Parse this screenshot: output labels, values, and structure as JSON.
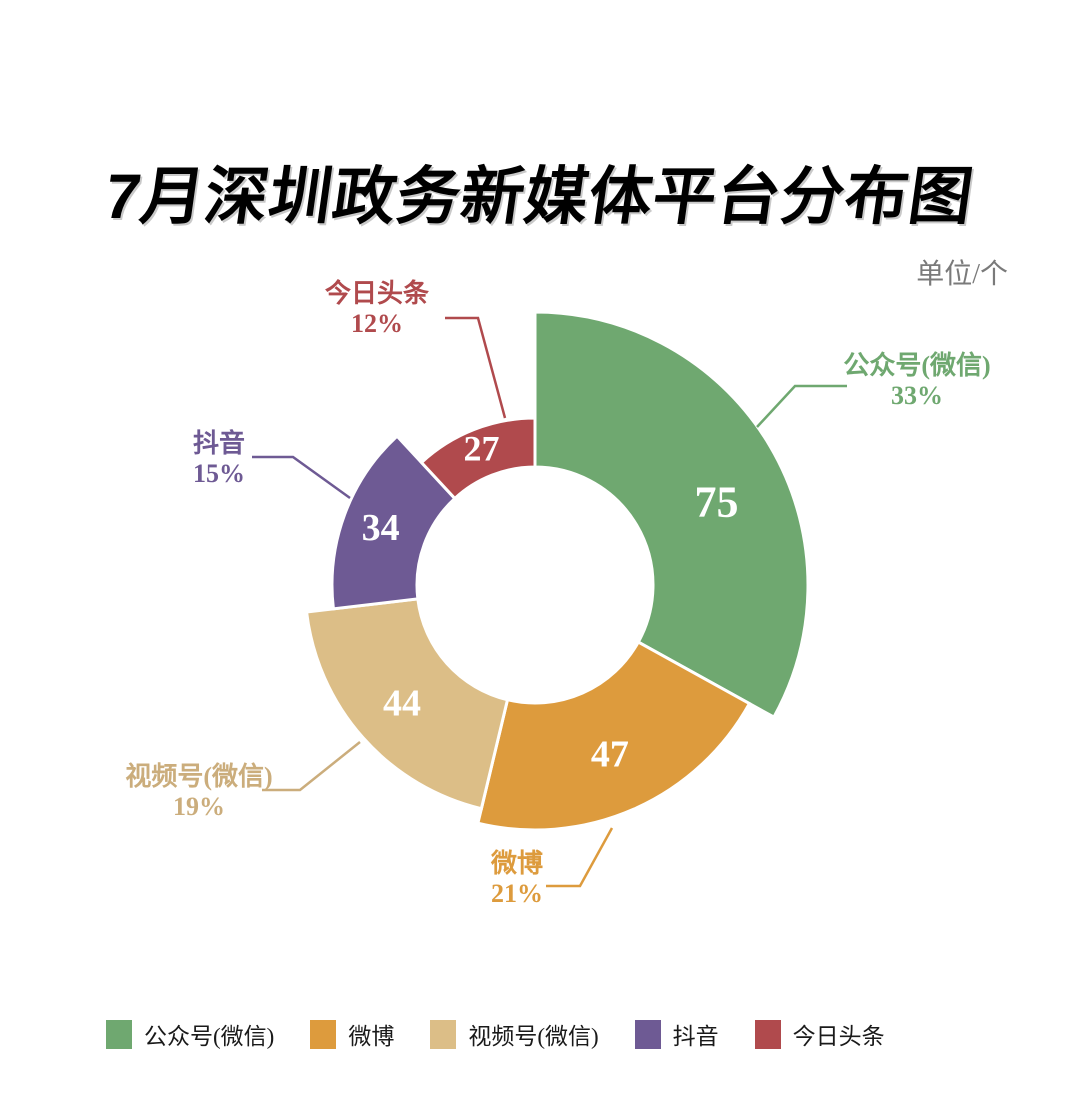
{
  "title": "7月深圳政务新媒体平台分布图",
  "unit_label": "单位/个",
  "chart_data": {
    "type": "pie",
    "subtype": "donut-rose",
    "title": "7月深圳政务新媒体平台分布图",
    "unit": "单位/个",
    "total": 227,
    "start_angle_deg": 0,
    "direction": "clockwise",
    "legend_position": "bottom",
    "series": [
      {
        "name": "公众号(微信)",
        "value": 75,
        "percent": "33%",
        "color": "#6FA870",
        "label_color": "#6FA870"
      },
      {
        "name": "微博",
        "value": 47,
        "percent": "21%",
        "color": "#DD9B3D",
        "label_color": "#DD9B3D"
      },
      {
        "name": "视频号(微信)",
        "value": 44,
        "percent": "19%",
        "color": "#DCBE87",
        "label_color": "#CBAD7C"
      },
      {
        "name": "抖音",
        "value": 34,
        "percent": "15%",
        "color": "#6E5A94",
        "label_color": "#6E5A94"
      },
      {
        "name": "今日头条",
        "value": 27,
        "percent": "12%",
        "color": "#B04A4D",
        "label_color": "#B04A4D"
      }
    ],
    "legend": [
      "公众号(微信)",
      "微博",
      "视频号(微信)",
      "抖音",
      "今日头条"
    ]
  }
}
